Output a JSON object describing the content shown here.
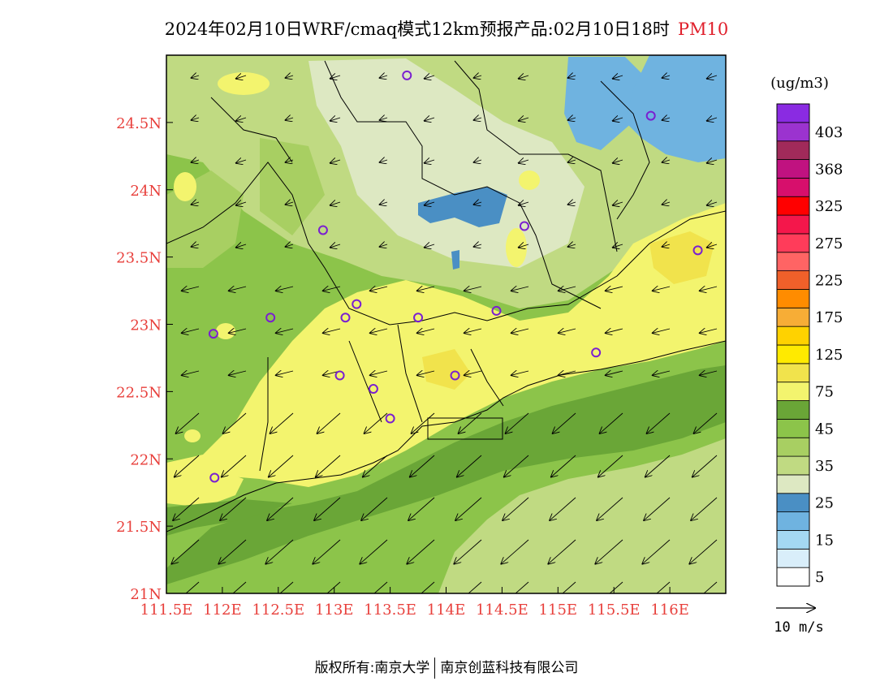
{
  "title": {
    "main": "2024年02月10日WRF/cmaq模式12km预报产品:02月10日18时",
    "pollutant": "PM10"
  },
  "map": {
    "lon_range": [
      111.5,
      116.5
    ],
    "lat_range": [
      21.0,
      25.0
    ],
    "x_ticks": [
      "111.5E",
      "112E",
      "112.5E",
      "113E",
      "113.5E",
      "114E",
      "114.5E",
      "115E",
      "115.5E",
      "116E"
    ],
    "y_ticks": [
      "21N",
      "21.5N",
      "22N",
      "22.5N",
      "23N",
      "23.5N",
      "24N",
      "24.5N"
    ],
    "tick_color": "#e8403c",
    "prevailing_wind": "easterly / north-easterly",
    "stations": [
      [
        113.65,
        24.85
      ],
      [
        115.83,
        24.55
      ],
      [
        112.9,
        23.7
      ],
      [
        114.7,
        23.73
      ],
      [
        116.25,
        23.55
      ],
      [
        113.2,
        23.15
      ],
      [
        112.43,
        23.05
      ],
      [
        113.1,
        23.05
      ],
      [
        113.75,
        23.05
      ],
      [
        114.45,
        23.1
      ],
      [
        111.92,
        22.93
      ],
      [
        115.34,
        22.79
      ],
      [
        113.05,
        22.62
      ],
      [
        114.08,
        22.62
      ],
      [
        113.35,
        22.52
      ],
      [
        113.5,
        22.3
      ],
      [
        111.93,
        21.86
      ]
    ]
  },
  "legend": {
    "unit": "(ug/m3)",
    "bins": [
      {
        "label": "5",
        "color": "#ffffff"
      },
      {
        "label": "",
        "color": "#d9eefa"
      },
      {
        "label": "15",
        "color": "#a4d8f2"
      },
      {
        "label": "",
        "color": "#6fb3e0"
      },
      {
        "label": "25",
        "color": "#4a8fc4"
      },
      {
        "label": "",
        "color": "#dde8c2"
      },
      {
        "label": "35",
        "color": "#c0da82"
      },
      {
        "label": "",
        "color": "#a8cf62"
      },
      {
        "label": "45",
        "color": "#8cc44a"
      },
      {
        "label": "",
        "color": "#6aa637"
      },
      {
        "label": "75",
        "color": "#f3f46e"
      },
      {
        "label": "",
        "color": "#f1e34c"
      },
      {
        "label": "125",
        "color": "#ffea00"
      },
      {
        "label": "",
        "color": "#ffd200"
      },
      {
        "label": "175",
        "color": "#f7ad36"
      },
      {
        "label": "",
        "color": "#ff8c00"
      },
      {
        "label": "225",
        "color": "#f0602a"
      },
      {
        "label": "",
        "color": "#ff6464"
      },
      {
        "label": "275",
        "color": "#ff3c5a"
      },
      {
        "label": "",
        "color": "#f4174b"
      },
      {
        "label": "325",
        "color": "#ff0000"
      },
      {
        "label": "",
        "color": "#d70f6c"
      },
      {
        "label": "368",
        "color": "#c01280"
      },
      {
        "label": "",
        "color": "#a12a5a"
      },
      {
        "label": "403",
        "color": "#9b33cf"
      },
      {
        "label": "",
        "color": "#8a2be2"
      }
    ],
    "vector_label": "10 m/s"
  },
  "footer": {
    "left": "版权所有:南京大学",
    "right": "南京创蓝科技有限公司"
  }
}
